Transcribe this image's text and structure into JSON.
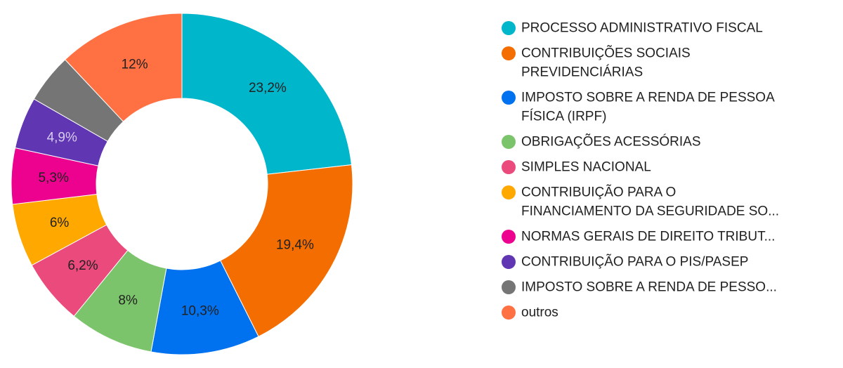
{
  "chart_data": {
    "type": "pie",
    "title": "",
    "legend_position": "right",
    "slices": [
      {
        "label": "PROCESSO ADMINISTRATIVO FISCAL",
        "legend_lines": [
          "PROCESSO ADMINISTRATIVO FISCAL"
        ],
        "value": 23.2,
        "value_label": "23,2%",
        "color": "#00b6cb",
        "label_color": "#212121"
      },
      {
        "label": "CONTRIBUIÇÕES SOCIAIS PREVIDENCIÁRIAS",
        "legend_lines": [
          "CONTRIBUIÇÕES SOCIAIS",
          "PREVIDENCIÁRIAS"
        ],
        "value": 19.4,
        "value_label": "19,4%",
        "color": "#f46d00",
        "label_color": "#212121"
      },
      {
        "label": "IMPOSTO SOBRE A RENDA DE PESSOA FÍSICA (IRPF)",
        "legend_lines": [
          "IMPOSTO SOBRE A RENDA DE PESSOA",
          "FÍSICA (IRPF)"
        ],
        "value": 10.3,
        "value_label": "10,3%",
        "color": "#0072f0",
        "label_color": "#212121"
      },
      {
        "label": "OBRIGAÇÕES ACESSÓRIAS",
        "legend_lines": [
          "OBRIGAÇÕES ACESSÓRIAS"
        ],
        "value": 8.0,
        "value_label": "8%",
        "color": "#7cc46c",
        "label_color": "#212121"
      },
      {
        "label": "SIMPLES NACIONAL",
        "legend_lines": [
          "SIMPLES NACIONAL"
        ],
        "value": 6.2,
        "value_label": "6,2%",
        "color": "#ea4b7c",
        "label_color": "#212121"
      },
      {
        "label": "CONTRIBUIÇÃO PARA O FINANCIAMENTO DA SEGURIDADE SO...",
        "legend_lines": [
          "CONTRIBUIÇÃO PARA O",
          "FINANCIAMENTO DA SEGURIDADE SO..."
        ],
        "value": 6.0,
        "value_label": "6%",
        "color": "#ffa800",
        "label_color": "#212121"
      },
      {
        "label": "NORMAS GERAIS DE DIREITO TRIBUT...",
        "legend_lines": [
          "NORMAS GERAIS DE DIREITO TRIBUT..."
        ],
        "value": 5.3,
        "value_label": "5,3%",
        "color": "#ed0290",
        "label_color": "#212121"
      },
      {
        "label": "CONTRIBUIÇÃO PARA O PIS/PASEP",
        "legend_lines": [
          "CONTRIBUIÇÃO PARA O PIS/PASEP"
        ],
        "value": 4.9,
        "value_label": "4,9%",
        "color": "#6136b3",
        "label_color": "#d7cdef"
      },
      {
        "label": "IMPOSTO SOBRE A RENDA DE PESSO...",
        "legend_lines": [
          "IMPOSTO SOBRE A RENDA DE PESSO..."
        ],
        "value": 4.7,
        "value_label": "",
        "color": "#757575",
        "label_color": "#212121"
      },
      {
        "label": "outros",
        "legend_lines": [
          "outros"
        ],
        "value": 12.0,
        "value_label": "12%",
        "color": "#ff7043",
        "label_color": "#212121"
      }
    ]
  }
}
